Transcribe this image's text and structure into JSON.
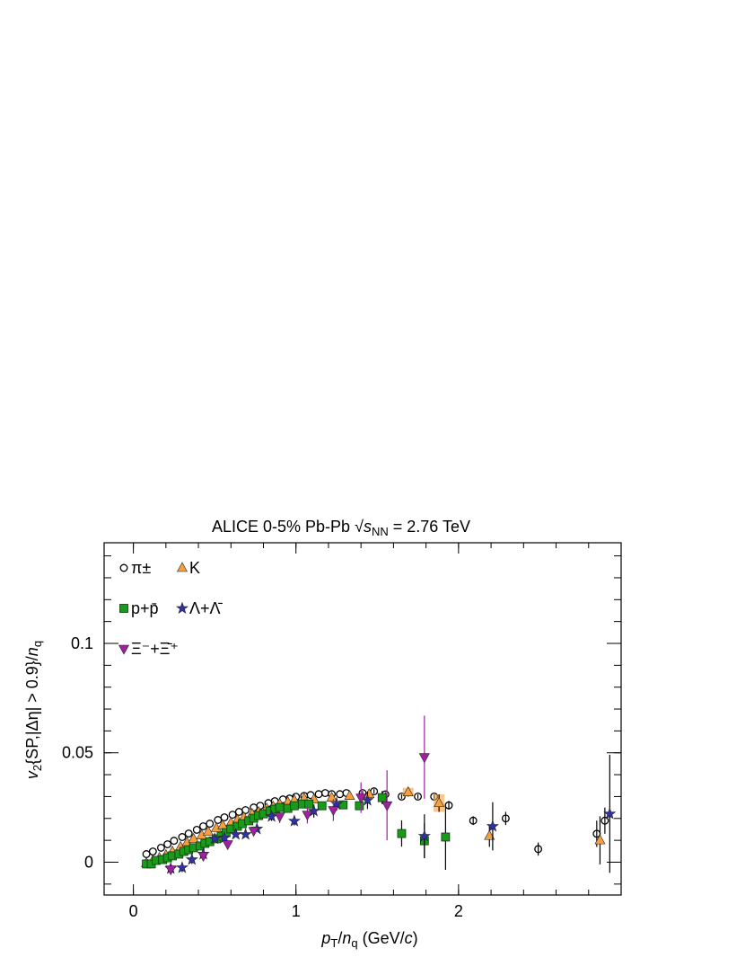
{
  "chart_data": {
    "type": "scatter",
    "title_parts": [
      {
        "text": "ALICE 0-5% Pb-Pb ",
        "style": "normal"
      },
      {
        "text": "√",
        "style": "normal"
      },
      {
        "text": "s",
        "style": "italic"
      },
      {
        "text": "NN",
        "style": "sub"
      },
      {
        "text": " = 2.76 TeV",
        "style": "normal"
      }
    ],
    "x_label_parts": [
      {
        "text": "p",
        "style": "italic"
      },
      {
        "text": "T",
        "style": "sub"
      },
      {
        "text": "/",
        "style": "normal"
      },
      {
        "text": "n",
        "style": "italic"
      },
      {
        "text": "q",
        "style": "sub"
      },
      {
        "text": " (GeV/",
        "style": "normal"
      },
      {
        "text": "c",
        "style": "italic"
      },
      {
        "text": ")",
        "style": "normal"
      }
    ],
    "y_label_parts": [
      {
        "text": "v",
        "style": "italic"
      },
      {
        "text": "2",
        "style": "sub"
      },
      {
        "text": "{SP,|Δη| > 0.9}/",
        "style": "normal"
      },
      {
        "text": "n",
        "style": "italic"
      },
      {
        "text": "q",
        "style": "sub"
      }
    ],
    "xlim": [
      -0.18,
      3.0
    ],
    "xticks": [
      0,
      1,
      2
    ],
    "ylim": [
      -0.015,
      0.146
    ],
    "yticks": [
      0,
      0.05,
      0.1
    ],
    "legend": "top-left",
    "series": [
      {
        "name": "π±",
        "color": "#000000",
        "marker": "open-circle",
        "error_color": "#000000",
        "x": [
          0.08,
          0.12,
          0.17,
          0.21,
          0.25,
          0.3,
          0.34,
          0.39,
          0.43,
          0.47,
          0.52,
          0.56,
          0.61,
          0.65,
          0.69,
          0.74,
          0.78,
          0.83,
          0.87,
          0.92,
          0.96,
          1.0,
          1.05,
          1.09,
          1.14,
          1.18,
          1.22,
          1.27,
          1.31,
          1.41,
          1.48,
          1.55,
          1.65,
          1.75,
          1.85,
          1.94,
          2.09,
          2.29,
          2.49,
          2.85,
          2.9
        ],
        "values": [
          0.0037,
          0.0049,
          0.0066,
          0.0082,
          0.0098,
          0.0115,
          0.0131,
          0.0148,
          0.0164,
          0.0176,
          0.0193,
          0.0205,
          0.0217,
          0.023,
          0.0238,
          0.025,
          0.0258,
          0.027,
          0.0279,
          0.0287,
          0.0291,
          0.0299,
          0.0303,
          0.0307,
          0.0311,
          0.0316,
          0.0311,
          0.0311,
          0.0316,
          0.0316,
          0.0324,
          0.031,
          0.03,
          0.03,
          0.03,
          0.026,
          0.019,
          0.02,
          0.006,
          0.013,
          0.019
        ],
        "errors": [
          0,
          0,
          0,
          0,
          0,
          0,
          0,
          0,
          0,
          0,
          0,
          0,
          0,
          0,
          0,
          0,
          0,
          0,
          0,
          0,
          0,
          0,
          0,
          0,
          0,
          0,
          0,
          0,
          0,
          0.001,
          0.001,
          0.001,
          0.001,
          0.001,
          0.001,
          0.002,
          0.002,
          0.003,
          0.003,
          0.006,
          0.006
        ]
      },
      {
        "name": "K",
        "color": "#f5a040",
        "marker": "triangle-up",
        "error_color": "#000000",
        "x": [
          0.08,
          0.12,
          0.16,
          0.2,
          0.24,
          0.29,
          0.33,
          0.37,
          0.42,
          0.46,
          0.51,
          0.55,
          0.6,
          0.64,
          0.68,
          0.73,
          0.77,
          0.82,
          0.86,
          0.9,
          0.95,
          0.99,
          1.05,
          1.11,
          1.22,
          1.33,
          1.45,
          1.69,
          1.88,
          2.19,
          2.87
        ],
        "values": [
          -0.0004,
          0.0008,
          0.002,
          0.0033,
          0.0049,
          0.007,
          0.009,
          0.0107,
          0.0123,
          0.0139,
          0.0156,
          0.0168,
          0.018,
          0.0193,
          0.0205,
          0.0221,
          0.023,
          0.0246,
          0.0254,
          0.0266,
          0.0275,
          0.0283,
          0.0291,
          0.0287,
          0.0295,
          0.0303,
          0.0311,
          0.032,
          0.027,
          0.012,
          0.01
        ],
        "errors": [
          0,
          0,
          0,
          0,
          0,
          0,
          0,
          0,
          0,
          0,
          0,
          0,
          0,
          0,
          0,
          0,
          0,
          0,
          0,
          0,
          0,
          0,
          0,
          0,
          0,
          0,
          0,
          0.002,
          0.004,
          0.005,
          0.011
        ],
        "syst": [
          null,
          null,
          null,
          null,
          null,
          null,
          null,
          null,
          null,
          null,
          null,
          null,
          null,
          null,
          null,
          null,
          null,
          null,
          null,
          null,
          null,
          null,
          null,
          null,
          null,
          null,
          null,
          0.002,
          0.004,
          null,
          null
        ]
      },
      {
        "name": "p+p̄",
        "color": "#1a9a1a",
        "marker": "square",
        "error_color": "#000000",
        "x": [
          0.08,
          0.11,
          0.14,
          0.18,
          0.21,
          0.24,
          0.28,
          0.31,
          0.34,
          0.37,
          0.41,
          0.44,
          0.47,
          0.51,
          0.54,
          0.57,
          0.6,
          0.64,
          0.67,
          0.71,
          0.74,
          0.77,
          0.8,
          0.84,
          0.87,
          0.9,
          0.95,
          0.99,
          1.04,
          1.08,
          1.16,
          1.29,
          1.39,
          1.53,
          1.65,
          1.79,
          1.92
        ],
        "values": [
          -0.0008,
          -0.0008,
          0.0008,
          0.0012,
          0.002,
          0.0029,
          0.0037,
          0.0049,
          0.0057,
          0.0066,
          0.0074,
          0.0086,
          0.0094,
          0.0107,
          0.0119,
          0.0135,
          0.0152,
          0.0164,
          0.0176,
          0.0189,
          0.0201,
          0.0213,
          0.0221,
          0.0234,
          0.0242,
          0.025,
          0.0246,
          0.0258,
          0.0266,
          0.0266,
          0.0258,
          0.0262,
          0.0258,
          0.0295,
          0.0131,
          0.0098,
          0.0115
        ],
        "errors": [
          0,
          0,
          0,
          0,
          0,
          0,
          0,
          0,
          0,
          0,
          0,
          0,
          0,
          0,
          0,
          0,
          0,
          0,
          0,
          0,
          0,
          0,
          0,
          0,
          0,
          0,
          0,
          0,
          0,
          0,
          0.001,
          0.002,
          0.002,
          0.003,
          0.006,
          0.008,
          0.015
        ]
      },
      {
        "name": "Λ+Λ̄",
        "color": "#3030a8",
        "marker": "star",
        "error_color": "#000000",
        "x": [
          0.23,
          0.3,
          0.36,
          0.43,
          0.5,
          0.56,
          0.63,
          0.69,
          0.76,
          0.85,
          0.99,
          1.11,
          1.25,
          1.44,
          1.79,
          2.21,
          2.93
        ],
        "values": [
          -0.0029,
          -0.0025,
          0.0012,
          0.0037,
          0.0107,
          0.0111,
          0.0127,
          0.0127,
          0.0152,
          0.0209,
          0.0188,
          0.0234,
          0.0266,
          0.0283,
          0.0119,
          0.0164,
          0.0221
        ],
        "errors": [
          0.002,
          0.002,
          0.002,
          0.002,
          0.001,
          0.001,
          0.001,
          0.001,
          0.001,
          0.002,
          0.002,
          0.003,
          0.003,
          0.004,
          0.01,
          0.011,
          0.027
        ]
      },
      {
        "name": "Ξ⁻+Ξ̄⁺",
        "color": "#a020a0",
        "marker": "triangle-down",
        "error_color": "#a020a0",
        "x": [
          0.23,
          0.43,
          0.58,
          0.74,
          0.9,
          1.07,
          1.23,
          1.4,
          1.56,
          1.79
        ],
        "values": [
          -0.0033,
          0.0029,
          0.0082,
          0.0143,
          0.0209,
          0.0217,
          0.0238,
          0.0295,
          0.026,
          0.048
        ],
        "errors": [
          0.002,
          0.002,
          0.002,
          0.002,
          0.003,
          0.004,
          0.005,
          0.007,
          0.016,
          0.019
        ]
      }
    ]
  }
}
